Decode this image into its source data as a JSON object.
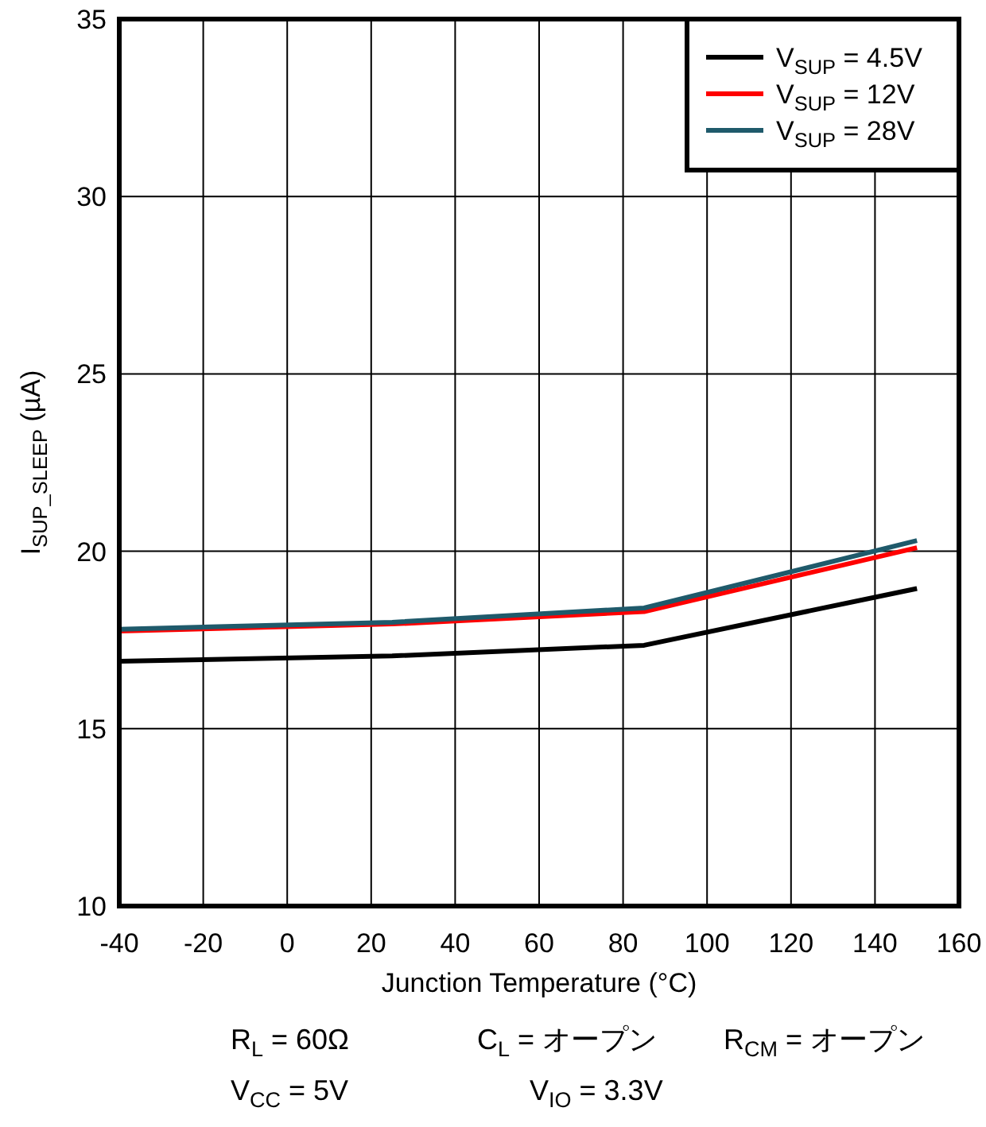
{
  "chart_data": {
    "type": "line",
    "xlabel": "Junction Temperature (°C)",
    "ylabel": "I$_{SUP_SLEEP}$ (µA)",
    "x": [
      -40,
      25,
      85,
      150
    ],
    "series": [
      {
        "name": "V$_{SUP}$ = 4.5V",
        "color": "#000000",
        "values": [
          16.9,
          17.05,
          17.35,
          18.95
        ]
      },
      {
        "name": "V$_{SUP}$ = 12V",
        "color": "#ff0000",
        "values": [
          17.75,
          17.95,
          18.3,
          20.1
        ]
      },
      {
        "name": "V$_{SUP}$ = 28V",
        "color": "#1f5a6b",
        "values": [
          17.8,
          18.0,
          18.4,
          20.3
        ]
      }
    ],
    "xlim": [
      -40,
      160
    ],
    "xticks": [
      -40,
      -20,
      0,
      20,
      40,
      60,
      80,
      100,
      120,
      140,
      160
    ],
    "ylim": [
      10,
      35
    ],
    "yticks": [
      10,
      15,
      20,
      25,
      30,
      35
    ],
    "grid": true,
    "legend": "top right",
    "line_style": "solid",
    "annotations": [
      "R$_{L}$ = 60Ω",
      "C$_{L}$ = オープン",
      "R$_{CM}$ = オープン",
      "V$_{CC}$ = 5V",
      "V$_{IO}$ = 3.3V"
    ]
  }
}
